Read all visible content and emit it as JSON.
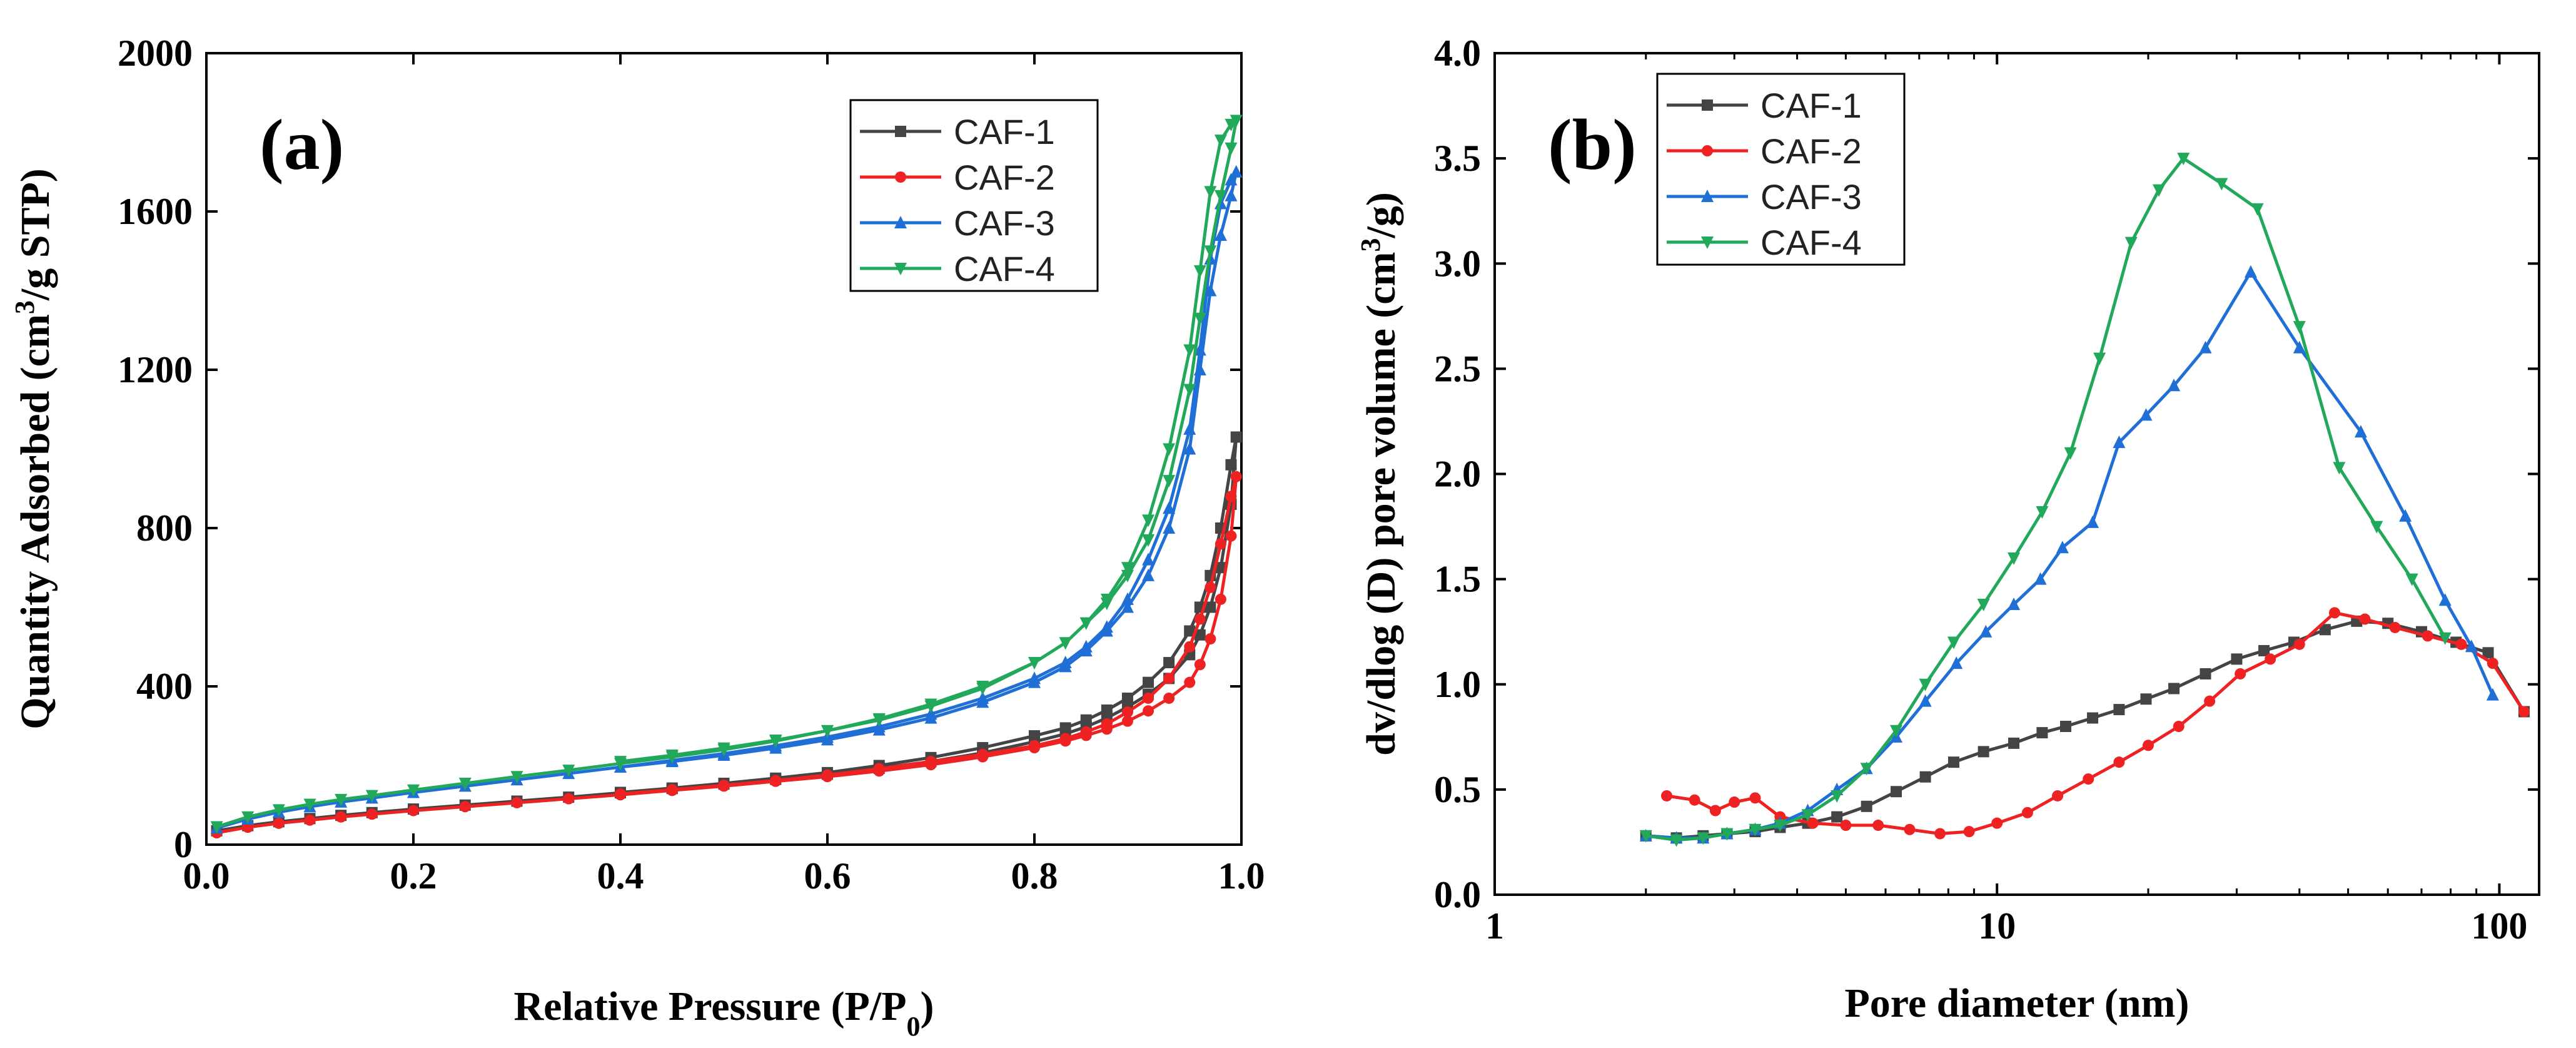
{
  "chart_data": [
    {
      "type": "line",
      "panel_label": "(a)",
      "xlabel_main": "Relative Pressure (P/P",
      "xlabel_sub": "0",
      "xlabel_end": ")",
      "ylabel_pre": "Quantity Adsorbed (cm",
      "ylabel_sup": "3",
      "ylabel_post": "/g STP)",
      "xlim": [
        0,
        1
      ],
      "ylim": [
        0,
        2000
      ],
      "xticks": [
        0.0,
        0.2,
        0.4,
        0.6,
        0.8,
        1.0
      ],
      "xtick_labels": [
        "0.0",
        "0.2",
        "0.4",
        "0.6",
        "0.8",
        "1.0"
      ],
      "yticks": [
        0,
        400,
        800,
        1200,
        1600,
        2000
      ],
      "ytick_labels": [
        "0",
        "400",
        "800",
        "1200",
        "1600",
        "2000"
      ],
      "legend_position": "top-right",
      "series": [
        {
          "name": "CAF-1",
          "color": "#444444",
          "marker": "square",
          "x": [
            0.01,
            0.04,
            0.07,
            0.1,
            0.13,
            0.16,
            0.2,
            0.25,
            0.3,
            0.35,
            0.4,
            0.45,
            0.5,
            0.55,
            0.6,
            0.65,
            0.7,
            0.75,
            0.8,
            0.83,
            0.85,
            0.87,
            0.89,
            0.91,
            0.93,
            0.95,
            0.96,
            0.97,
            0.98,
            0.99,
            0.995,
            0.99,
            0.98,
            0.97,
            0.96,
            0.95,
            0.93,
            0.91,
            0.89,
            0.87,
            0.85,
            0.83,
            0.8,
            0.75,
            0.7,
            0.65,
            0.6,
            0.55,
            0.5,
            0.45,
            0.4
          ],
          "y": [
            35,
            48,
            58,
            66,
            74,
            81,
            90,
            100,
            110,
            120,
            131,
            142,
            153,
            165,
            178,
            193,
            210,
            232,
            260,
            280,
            298,
            320,
            348,
            380,
            420,
            480,
            530,
            600,
            700,
            860,
            1030,
            960,
            800,
            680,
            600,
            540,
            460,
            410,
            370,
            340,
            315,
            295,
            275,
            245,
            220,
            200,
            182,
            168,
            155,
            143,
            132
          ]
        },
        {
          "name": "CAF-2",
          "color": "#ee2222",
          "marker": "circle",
          "x": [
            0.01,
            0.04,
            0.07,
            0.1,
            0.13,
            0.16,
            0.2,
            0.25,
            0.3,
            0.35,
            0.4,
            0.45,
            0.5,
            0.55,
            0.6,
            0.65,
            0.7,
            0.75,
            0.8,
            0.83,
            0.85,
            0.87,
            0.89,
            0.91,
            0.93,
            0.95,
            0.96,
            0.97,
            0.98,
            0.99,
            0.995,
            0.99,
            0.98,
            0.97,
            0.96,
            0.95,
            0.93,
            0.91,
            0.89,
            0.87,
            0.85,
            0.83,
            0.8,
            0.75,
            0.7,
            0.65,
            0.6,
            0.55,
            0.5,
            0.45,
            0.4
          ],
          "y": [
            30,
            44,
            54,
            62,
            70,
            77,
            86,
            96,
            106,
            116,
            126,
            137,
            148,
            160,
            172,
            186,
            202,
            222,
            245,
            262,
            276,
            292,
            312,
            338,
            370,
            410,
            455,
            520,
            620,
            780,
            930,
            880,
            760,
            650,
            570,
            500,
            420,
            370,
            335,
            305,
            285,
            268,
            250,
            228,
            210,
            192,
            176,
            162,
            150,
            139,
            128
          ]
        },
        {
          "name": "CAF-3",
          "color": "#1f6fd6",
          "marker": "triangle-up",
          "x": [
            0.01,
            0.04,
            0.07,
            0.1,
            0.13,
            0.16,
            0.2,
            0.25,
            0.3,
            0.35,
            0.4,
            0.45,
            0.5,
            0.55,
            0.6,
            0.65,
            0.7,
            0.75,
            0.8,
            0.83,
            0.85,
            0.87,
            0.89,
            0.91,
            0.93,
            0.95,
            0.96,
            0.97,
            0.98,
            0.99,
            0.995,
            0.99,
            0.98,
            0.97,
            0.96,
            0.95,
            0.93,
            0.91,
            0.89,
            0.87,
            0.85,
            0.83,
            0.8,
            0.75,
            0.7,
            0.65,
            0.6,
            0.55,
            0.5,
            0.45,
            0.4
          ],
          "y": [
            42,
            65,
            82,
            96,
            108,
            118,
            132,
            148,
            164,
            180,
            196,
            213,
            230,
            250,
            272,
            298,
            330,
            370,
            420,
            460,
            500,
            550,
            620,
            720,
            850,
            1050,
            1250,
            1480,
            1620,
            1680,
            1700,
            1640,
            1540,
            1400,
            1200,
            1000,
            800,
            680,
            600,
            540,
            490,
            450,
            410,
            360,
            320,
            290,
            265,
            244,
            226,
            210,
            196
          ]
        },
        {
          "name": "CAF-4",
          "color": "#22a85a",
          "marker": "triangle-down",
          "x": [
            0.01,
            0.04,
            0.07,
            0.1,
            0.13,
            0.16,
            0.2,
            0.25,
            0.3,
            0.35,
            0.4,
            0.45,
            0.5,
            0.55,
            0.6,
            0.65,
            0.7,
            0.75,
            0.8,
            0.83,
            0.85,
            0.87,
            0.89,
            0.91,
            0.93,
            0.95,
            0.96,
            0.97,
            0.98,
            0.99,
            0.995,
            0.99,
            0.98,
            0.97,
            0.96,
            0.95,
            0.93,
            0.91,
            0.89,
            0.87,
            0.85,
            0.83,
            0.8,
            0.75,
            0.7,
            0.65,
            0.6,
            0.55,
            0.5,
            0.45,
            0.4
          ],
          "y": [
            45,
            70,
            88,
            102,
            114,
            124,
            138,
            155,
            172,
            188,
            205,
            222,
            240,
            262,
            288,
            318,
            355,
            400,
            460,
            510,
            560,
            620,
            700,
            820,
            1000,
            1250,
            1450,
            1650,
            1780,
            1820,
            1830,
            1760,
            1640,
            1500,
            1330,
            1150,
            920,
            770,
            680,
            610,
            560,
            510,
            460,
            395,
            350,
            315,
            288,
            264,
            244,
            226,
            210
          ]
        }
      ]
    },
    {
      "type": "line",
      "panel_label": "(b)",
      "xlabel": "Pore diameter (nm)",
      "ylabel_pre": "dv/dlog (D) pore volume (cm",
      "ylabel_sup": "3",
      "ylabel_post": "/g)",
      "xscale": "log",
      "xlim": [
        1,
        120
      ],
      "ylim": [
        0,
        4.0
      ],
      "xticks": [
        1,
        10,
        100
      ],
      "xtick_labels": [
        "1",
        "10",
        "100"
      ],
      "yticks": [
        0.0,
        0.5,
        1.0,
        1.5,
        2.0,
        2.5,
        3.0,
        3.5,
        4.0
      ],
      "ytick_labels": [
        "0.0",
        "0.5",
        "1.0",
        "1.5",
        "2.0",
        "2.5",
        "3.0",
        "3.5",
        "4.0"
      ],
      "legend_position": "top-left",
      "series": [
        {
          "name": "CAF-1",
          "color": "#444444",
          "marker": "square",
          "x": [
            2.0,
            2.3,
            2.6,
            2.9,
            3.3,
            3.7,
            4.2,
            4.8,
            5.5,
            6.3,
            7.2,
            8.2,
            9.4,
            10.8,
            12.3,
            13.7,
            15.5,
            17.5,
            19.8,
            22.5,
            26.0,
            30.0,
            34.0,
            39.0,
            45.0,
            52.0,
            60.0,
            70.0,
            82.0,
            95.0,
            112.0
          ],
          "y": [
            0.28,
            0.27,
            0.28,
            0.29,
            0.3,
            0.32,
            0.34,
            0.37,
            0.42,
            0.49,
            0.56,
            0.63,
            0.68,
            0.72,
            0.77,
            0.8,
            0.84,
            0.88,
            0.93,
            0.98,
            1.05,
            1.12,
            1.16,
            1.2,
            1.26,
            1.3,
            1.29,
            1.25,
            1.2,
            1.15,
            0.87
          ]
        },
        {
          "name": "CAF-2",
          "color": "#ee2222",
          "marker": "circle",
          "x": [
            2.2,
            2.5,
            2.75,
            3.0,
            3.3,
            3.7,
            4.3,
            5.0,
            5.8,
            6.7,
            7.7,
            8.8,
            10.0,
            11.5,
            13.2,
            15.2,
            17.5,
            20.0,
            23.0,
            26.5,
            30.5,
            35.0,
            40.0,
            47.0,
            54.0,
            62.0,
            72.0,
            84.0,
            97.0,
            112.0
          ],
          "y": [
            0.47,
            0.45,
            0.4,
            0.44,
            0.46,
            0.37,
            0.34,
            0.33,
            0.33,
            0.31,
            0.29,
            0.3,
            0.34,
            0.39,
            0.47,
            0.55,
            0.63,
            0.71,
            0.8,
            0.92,
            1.05,
            1.12,
            1.19,
            1.34,
            1.31,
            1.27,
            1.23,
            1.19,
            1.1,
            0.87
          ]
        },
        {
          "name": "CAF-3",
          "color": "#1f6fd6",
          "marker": "triangle-up",
          "x": [
            2.0,
            2.3,
            2.6,
            2.9,
            3.3,
            3.7,
            4.2,
            4.8,
            5.5,
            6.3,
            7.2,
            8.3,
            9.5,
            10.8,
            12.2,
            13.5,
            15.5,
            17.5,
            19.8,
            22.5,
            26.0,
            32.0,
            40.0,
            53.0,
            65.0,
            78.0,
            88.0,
            97.0
          ],
          "y": [
            0.28,
            0.27,
            0.27,
            0.29,
            0.31,
            0.34,
            0.4,
            0.5,
            0.6,
            0.75,
            0.92,
            1.1,
            1.25,
            1.38,
            1.5,
            1.65,
            1.77,
            2.15,
            2.28,
            2.42,
            2.6,
            2.96,
            2.6,
            2.2,
            1.8,
            1.4,
            1.18,
            0.95
          ]
        },
        {
          "name": "CAF-4",
          "color": "#22a85a",
          "marker": "triangle-down",
          "x": [
            2.0,
            2.3,
            2.6,
            2.9,
            3.3,
            3.7,
            4.2,
            4.8,
            5.5,
            6.3,
            7.2,
            8.2,
            9.4,
            10.8,
            12.3,
            14.0,
            16.0,
            18.5,
            21.0,
            23.5,
            28.0,
            33.0,
            40.0,
            48.0,
            57.0,
            67.0,
            78.0
          ],
          "y": [
            0.28,
            0.26,
            0.27,
            0.29,
            0.31,
            0.33,
            0.38,
            0.47,
            0.6,
            0.78,
            1.0,
            1.2,
            1.38,
            1.6,
            1.82,
            2.1,
            2.55,
            3.1,
            3.35,
            3.5,
            3.38,
            3.26,
            2.7,
            2.03,
            1.75,
            1.5,
            1.22
          ]
        }
      ]
    }
  ]
}
